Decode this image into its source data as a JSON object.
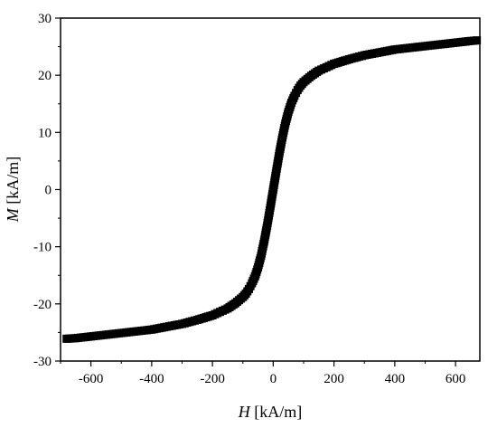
{
  "chart_data": {
    "type": "scatter",
    "title": "",
    "xlabel_italic": "H",
    "xlabel_rest": " [kA/m]",
    "ylabel_italic": "M",
    "ylabel_rest": " [kA/m]",
    "xlim": [
      -700,
      680
    ],
    "ylim": [
      -30,
      30
    ],
    "xticks": [
      -600,
      -400,
      -200,
      0,
      200,
      400,
      600
    ],
    "yticks": [
      -30,
      -20,
      -10,
      0,
      10,
      20,
      30
    ],
    "grid": false,
    "marker_color": "#000000",
    "x": [
      -680,
      -650,
      -600,
      -550,
      -500,
      -450,
      -400,
      -350,
      -300,
      -250,
      -200,
      -175,
      -150,
      -125,
      -100,
      -90,
      -80,
      -70,
      -60,
      -50,
      -40,
      -30,
      -20,
      -10,
      -5,
      0,
      5,
      10,
      20,
      30,
      40,
      50,
      60,
      70,
      80,
      90,
      100,
      125,
      150,
      175,
      200,
      250,
      300,
      350,
      400,
      450,
      500,
      550,
      600,
      650,
      670
    ],
    "y": [
      -26.1,
      -26.0,
      -25.7,
      -25.4,
      -25.1,
      -24.8,
      -24.5,
      -24.0,
      -23.5,
      -22.8,
      -22.0,
      -21.4,
      -20.8,
      -19.9,
      -18.8,
      -18.2,
      -17.4,
      -16.4,
      -15.2,
      -13.6,
      -11.6,
      -9.1,
      -6.3,
      -3.2,
      -1.6,
      0.0,
      1.6,
      3.2,
      6.3,
      9.1,
      11.6,
      13.6,
      15.2,
      16.4,
      17.4,
      18.2,
      18.8,
      19.9,
      20.8,
      21.4,
      22.0,
      22.8,
      23.5,
      24.0,
      24.5,
      24.8,
      25.1,
      25.4,
      25.7,
      26.0,
      26.1
    ]
  }
}
